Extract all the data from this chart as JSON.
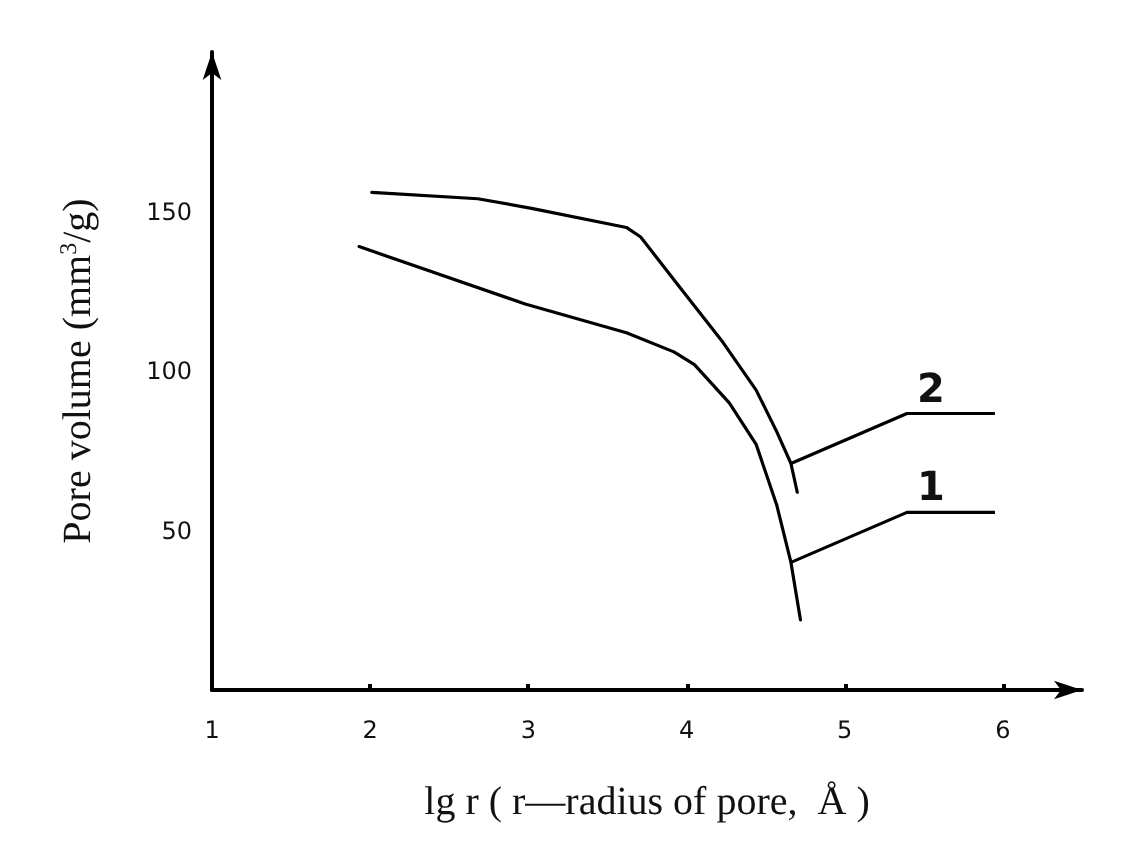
{
  "chart_data": {
    "type": "line",
    "xlabel": "lg r ( r—radius of pore,  Å )",
    "ylabel": "Pore volume (mm$^{3}$/g)",
    "xlim": [
      1,
      6.5
    ],
    "xticks": [
      1,
      2,
      3,
      4,
      5,
      6
    ],
    "ylim": [
      0,
      200
    ],
    "yticks": [
      50,
      100,
      150
    ],
    "grid": false,
    "marker": "none",
    "line_style": "solid",
    "series": [
      {
        "name": "1",
        "color": "#000000",
        "x": [
          1.93,
          2.98,
          3.62,
          3.92,
          4.05,
          4.27,
          4.44,
          4.57,
          4.66,
          4.72
        ],
        "values": [
          139,
          121,
          112,
          106,
          102,
          90,
          77,
          58,
          40,
          22
        ]
      },
      {
        "name": "2",
        "color": "#000000",
        "x": [
          2.01,
          2.68,
          3.02,
          3.62,
          3.71,
          3.93,
          4.23,
          4.44,
          4.57,
          4.66,
          4.7
        ],
        "values": [
          156,
          154,
          151,
          145,
          142,
          128,
          109,
          94,
          81,
          71,
          62
        ]
      }
    ]
  }
}
